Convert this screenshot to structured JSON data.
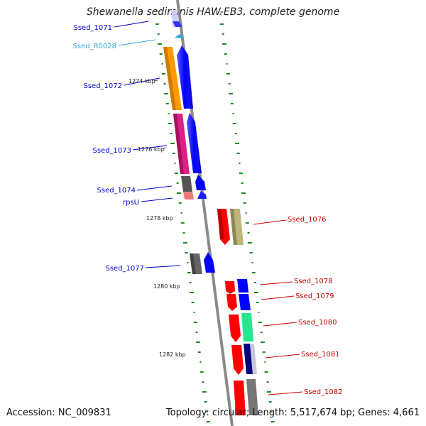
{
  "title": "Shewanella sediminis HAW-EB3, complete genome",
  "footer": {
    "accession": "Accession: NC_009831",
    "summary": "Topology: circular; Length: 5,517,674 bp; Genes: 4,661"
  },
  "position_labels": [
    "1274 kbp",
    "1276 kbp",
    "1278 kbp",
    "1280 kbp",
    "1282 kbp"
  ],
  "genes": [
    {
      "label": "Ssed_1071",
      "color": "#1a1aff",
      "side": "left"
    },
    {
      "label": "Ssed_R0028",
      "color": "#30a8e0",
      "side": "left"
    },
    {
      "label": "Ssed_1072",
      "color": "#1a1aff",
      "side": "left"
    },
    {
      "label": "Ssed_1073",
      "color": "#1a1aff",
      "side": "left"
    },
    {
      "label": "Ssed_1074",
      "color": "#1a1aff",
      "side": "left"
    },
    {
      "label": "rpsU",
      "color": "#1a1aff",
      "side": "left"
    },
    {
      "label": "Ssed_1077",
      "color": "#1a1aff",
      "side": "left"
    },
    {
      "label": "Ssed_1076",
      "color": "#e01010",
      "side": "right"
    },
    {
      "label": "Ssed_1078",
      "color": "#e01010",
      "side": "right"
    },
    {
      "label": "Ssed_1079",
      "color": "#e01010",
      "side": "right"
    },
    {
      "label": "Ssed_1080",
      "color": "#e01010",
      "side": "right"
    },
    {
      "label": "Ssed_1081",
      "color": "#e01010",
      "side": "right"
    },
    {
      "label": "Ssed_1082",
      "color": "#e01010",
      "side": "right"
    }
  ],
  "colors": {
    "backbone": "#8a8a8a",
    "gc_ticks": "#1e8a1e",
    "blue": "#0000ff",
    "red": "#ff0000",
    "orange": "#ff9900",
    "magenta": "#e0208a",
    "gray": "#666666",
    "pink": "#e87a7a",
    "khaki": "#bdb67a",
    "green": "#22e890",
    "navy": "#000080",
    "lightblue": "#9999ff"
  }
}
